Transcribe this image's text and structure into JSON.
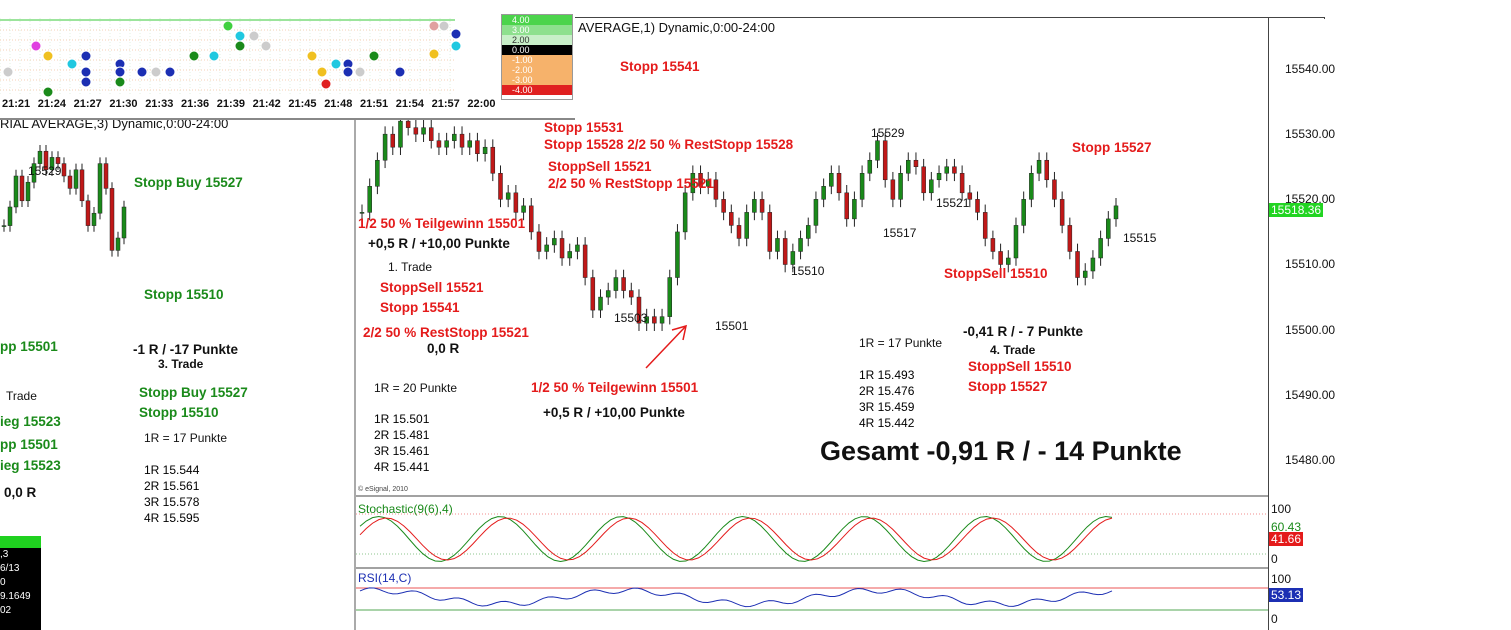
{
  "mini_chart": {
    "times": [
      "21:21",
      "21:24",
      "21:27",
      "21:30",
      "21:33",
      "21:36",
      "21:39",
      "21:42",
      "21:45",
      "21:48",
      "21:51",
      "21:54",
      "21:57",
      "22:00"
    ],
    "scale": [
      "4.00",
      "3.00",
      "2.00",
      "0.00",
      "-1.00",
      "-2.00",
      "-3.00",
      "-4.00"
    ]
  },
  "left_panel": {
    "title": "RIAL AVERAGE,3) Dynamic,0:00-24:00",
    "swing_high": "15529",
    "labels": {
      "stopp_buy_1": "Stopp Buy 15527",
      "stopp_1": "Stopp 15510",
      "pp_1": "pp 15501",
      "result": "-1 R / -17 Punkte",
      "trade": "3. Trade",
      "trade_cut": "Trade",
      "stopp_buy_2": "Stopp Buy 15527",
      "stopp_2": "Stopp 15510",
      "ieg_1": "ieg 15523",
      "pp_2": "pp 15501",
      "ieg_2": "ieg 15523",
      "r_value": "0,0 R",
      "r_def": "1R = 17 Punkte",
      "levels": [
        "1R 15.544",
        "2R 15.561",
        "3R 15.578",
        "4R 15.595"
      ]
    },
    "info_box": [
      ",3",
      "6/13",
      "0",
      "9.1649",
      "02"
    ]
  },
  "main_panel": {
    "title": "AVERAGE,1) Dynamic,0:00-24:00",
    "copyright": "© eSignal, 2010",
    "stoch_label": "Stochastic(9(6),4)",
    "rsi_label": "RSI(14,C)",
    "total": "Gesamt -0,91 R / - 14 Punkte",
    "swing_labels": [
      "15529",
      "15503",
      "15501",
      "15510",
      "15517",
      "15529",
      "15521",
      "15515"
    ],
    "annotations": {
      "stopp_15541_top": "Stopp 15541",
      "stopp_15531": "Stopp 15531",
      "stopp_15528": "Stopp 15528  2/2 50 % RestStopp 15528",
      "stoppsell_15521_a": "StoppSell 15521",
      "reststopp_15521_a": "2/2 50 % RestStopp 15521",
      "teilgewinn_1": "1/2 50 % Teilgewinn 15501",
      "result_1": "+0,5 R / +10,00 Punkte",
      "trade_1": "1. Trade",
      "stoppsell_15521_b": "StoppSell 15521",
      "stopp_15541": "Stopp 15541",
      "reststopp_15521_b": "2/2 50 % RestStopp 15521",
      "r_zero": "0,0 R",
      "r_def_1": "1R = 20 Punkte",
      "levels_1": [
        "1R 15.501",
        "2R 15.481",
        "3R 15.461",
        "4R 15.441"
      ],
      "teilgewinn_2": "1/2 50 % Teilgewinn 15501",
      "result_2": "+0,5 R / +10,00 Punkte",
      "stopp_15527": "Stopp 15527",
      "stoppsell_15510": "StoppSell 15510",
      "r_def_4": "1R = 17 Punkte",
      "result_4": "-0,41 R / - 7 Punkte",
      "trade_4": "4. Trade",
      "stoppsell_15510_b": "StoppSell 15510",
      "stopp_15527_b": "Stopp 15527",
      "levels_4": [
        "1R 15.493",
        "2R 15.476",
        "3R 15.459",
        "4R 15.442"
      ]
    }
  },
  "axis": {
    "price_ticks": [
      "15540.00",
      "15530.00",
      "15520.00",
      "15510.00",
      "15500.00",
      "15490.00",
      "15480.00"
    ],
    "last_price": "15518.36",
    "stoch_ticks": [
      "100",
      "0"
    ],
    "stoch_values": [
      "60.43",
      "41.66"
    ],
    "rsi_ticks": [
      "100",
      "0"
    ],
    "rsi_value": "53.13"
  },
  "colors": {
    "up": "#1a8a1a",
    "down": "#c01818",
    "red_text": "#e41b1b",
    "green_text": "#1a8a1a",
    "rsi": "#1c2fb3",
    "last_price_bg": "#22d422"
  },
  "chart_data": {
    "type": "line",
    "title": "",
    "xlabel": "",
    "ylabel": "",
    "ylim": [
      15475,
      15548
    ],
    "series": [
      {
        "values": [
          15518,
          15522,
          15526,
          15530,
          15528,
          15532,
          15531,
          15530,
          15531,
          15529,
          15528,
          15529,
          15530,
          15528,
          15529,
          15527,
          15528,
          15524,
          15520,
          15521,
          15518,
          15519,
          15515,
          15512,
          15513,
          15514,
          15511,
          15512,
          15513,
          15508,
          15503,
          15505,
          15506,
          15508,
          15506,
          15505,
          15501,
          15502,
          15501,
          15502,
          15508,
          15515,
          15521,
          15524,
          15522,
          15523,
          15520,
          15518,
          15516,
          15514,
          15518,
          15520,
          15518,
          15512,
          15514,
          15510,
          15512,
          15514,
          15516,
          15520,
          15522,
          15524,
          15521,
          15517,
          15520,
          15524,
          15526,
          15529,
          15523,
          15520,
          15524,
          15526,
          15525,
          15521,
          15523,
          15524,
          15525,
          15524,
          15521,
          15520,
          15518,
          15514,
          15512,
          15510,
          15511,
          15516,
          15520,
          15524,
          15526,
          15523,
          15520,
          15516,
          15512,
          15508,
          15509,
          15511,
          15514,
          15517,
          15519
        ]
      }
    ]
  }
}
